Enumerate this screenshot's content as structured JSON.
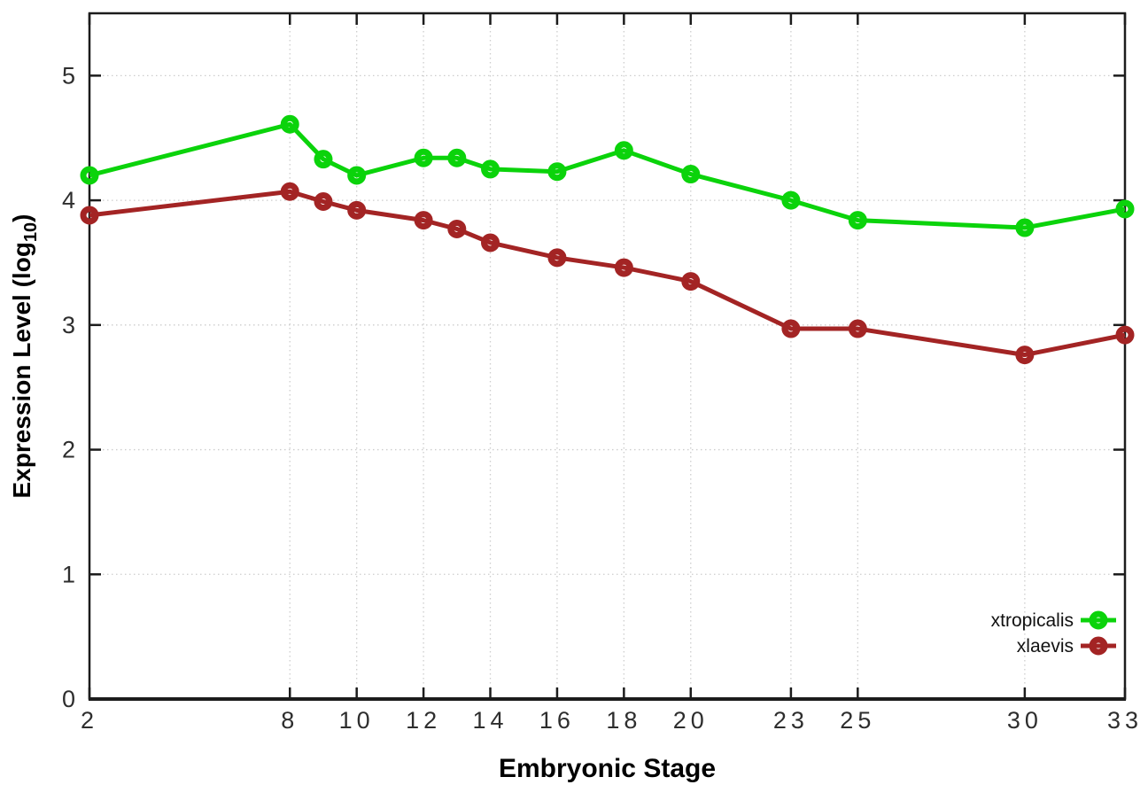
{
  "chart_data": {
    "type": "line",
    "title": "",
    "xlabel": "Embryonic Stage",
    "ylabel": "Expression Level (log10)",
    "ylabel_parts": {
      "pre": "Expression Level (log",
      "sub": "10",
      "post": ")"
    },
    "x": [
      2,
      8,
      9,
      10,
      12,
      13,
      14,
      16,
      18,
      20,
      23,
      25,
      30,
      33
    ],
    "series": [
      {
        "name": "xtropicalis",
        "color": "#0bd30b",
        "values": [
          4.2,
          4.61,
          4.33,
          4.2,
          4.34,
          4.34,
          4.25,
          4.23,
          4.4,
          4.21,
          4.0,
          3.84,
          3.78,
          3.93
        ]
      },
      {
        "name": "xlaevis",
        "color": "#a32424",
        "values": [
          3.88,
          4.07,
          3.99,
          3.92,
          3.84,
          3.77,
          3.66,
          3.54,
          3.46,
          3.35,
          2.97,
          2.97,
          2.76,
          2.92
        ]
      }
    ],
    "x_tick_labels": [
      "2",
      "8",
      "10",
      "12",
      "14",
      "16",
      "18",
      "20",
      "23",
      "25",
      "30",
      "33"
    ],
    "x_tick_values": [
      2,
      8,
      10,
      12,
      14,
      16,
      18,
      20,
      23,
      25,
      30,
      33
    ],
    "y_tick_labels": [
      "0",
      "1",
      "2",
      "3",
      "4",
      "5"
    ],
    "y_tick_values": [
      0,
      1,
      2,
      3,
      4,
      5
    ],
    "xlim": [
      2,
      33
    ],
    "ylim": [
      0,
      5.5
    ],
    "grid": true,
    "legend_position": "bottom-right",
    "marker": "open-circle"
  }
}
